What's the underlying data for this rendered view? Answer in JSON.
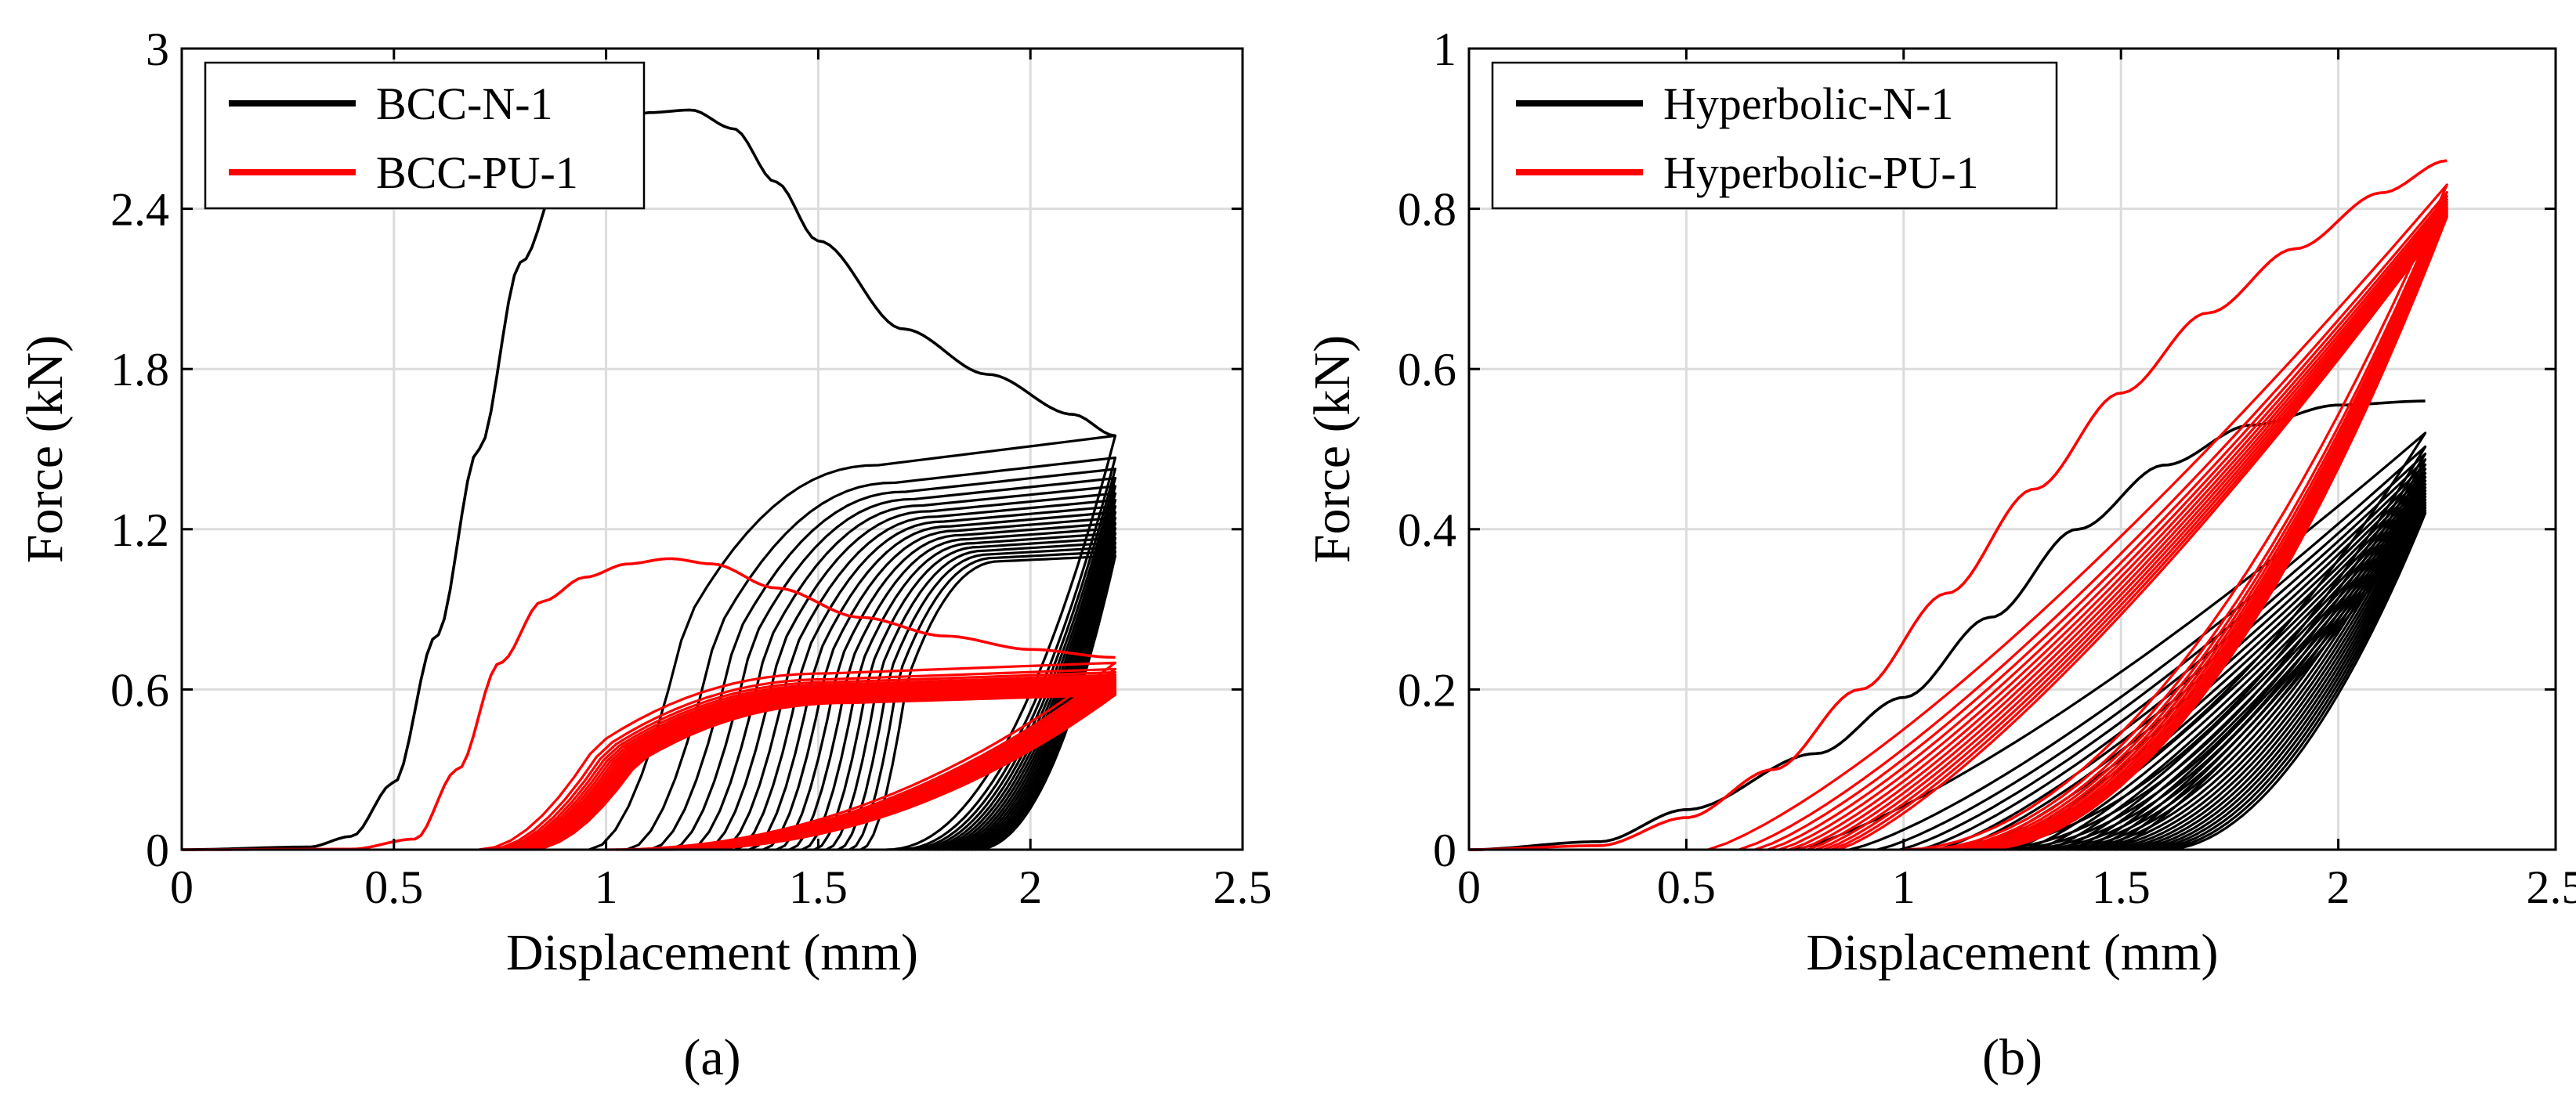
{
  "chart_data": [
    {
      "id": "a",
      "type": "line",
      "caption": "(a)",
      "xlabel": "Displacement (mm)",
      "ylabel": "Force (kN)",
      "xlim": [
        0,
        2.5
      ],
      "ylim": [
        0,
        3
      ],
      "xticks": [
        0,
        0.5,
        1,
        1.5,
        2,
        2.5
      ],
      "xtick_labels": [
        "0",
        "0.5",
        "1",
        "1.5",
        "2",
        "2.5"
      ],
      "yticks": [
        0,
        0.6,
        1.2,
        1.8,
        2.4,
        3
      ],
      "ytick_labels": [
        "0",
        "0.6",
        "1.2",
        "1.8",
        "2.4",
        "3"
      ],
      "grid": true,
      "legend_position": "top-left",
      "series": [
        {
          "name": "BCC-N-1",
          "color": "#000000",
          "first_load": {
            "x": [
              0,
              0.3,
              0.4,
              0.5,
              0.6,
              0.7,
              0.8,
              0.9,
              1.0,
              1.1,
              1.2,
              1.3,
              1.4,
              1.5,
              1.7,
              1.9,
              2.1,
              2.2
            ],
            "y": [
              0,
              0.01,
              0.05,
              0.25,
              0.8,
              1.5,
              2.2,
              2.55,
              2.7,
              2.76,
              2.77,
              2.7,
              2.5,
              2.28,
              1.95,
              1.78,
              1.63,
              1.55
            ]
          },
          "cycles": {
            "count": 18,
            "reload_start_first": 0.96,
            "reload_start_last": 1.6,
            "peak_first": 1.55,
            "peak_last": 1.1,
            "plateau_first": 1.44,
            "plateau_last": 1.08,
            "unload_first": 1.66,
            "unload_last": 1.87,
            "x_max": 2.2
          }
        },
        {
          "name": "BCC-PU-1",
          "color": "#ff0000",
          "first_load": {
            "x": [
              0,
              0.4,
              0.55,
              0.65,
              0.75,
              0.85,
              0.95,
              1.05,
              1.15,
              1.25,
              1.4,
              1.6,
              1.8,
              2.0,
              2.2
            ],
            "y": [
              0,
              0.002,
              0.04,
              0.3,
              0.7,
              0.93,
              1.02,
              1.07,
              1.09,
              1.07,
              0.98,
              0.87,
              0.8,
              0.75,
              0.72
            ]
          },
          "cycles": {
            "count": 16,
            "reload_start_first": 0.7,
            "reload_start_last": 0.82,
            "peak_first": 0.7,
            "peak_last": 0.58,
            "plateau_first": 0.66,
            "plateau_last": 0.55,
            "unload_first": 1.0,
            "unload_last": 1.15,
            "x_max": 2.2
          }
        }
      ]
    },
    {
      "id": "b",
      "type": "line",
      "caption": "(b)",
      "xlabel": "Displacement (mm)",
      "ylabel": "Force (kN)",
      "xlim": [
        0,
        2.5
      ],
      "ylim": [
        0,
        1
      ],
      "xticks": [
        0,
        0.5,
        1,
        1.5,
        2,
        2.5
      ],
      "xtick_labels": [
        "0",
        "0.5",
        "1",
        "1.5",
        "2",
        "2.5"
      ],
      "yticks": [
        0,
        0.2,
        0.4,
        0.6,
        0.8,
        1
      ],
      "ytick_labels": [
        "0",
        "0.2",
        "0.4",
        "0.6",
        "0.8",
        "1"
      ],
      "grid": true,
      "legend_position": "top-left",
      "series": [
        {
          "name": "Hyperbolic-N-1",
          "color": "#000000",
          "first_load": {
            "x": [
              0,
              0.3,
              0.5,
              0.8,
              1.0,
              1.2,
              1.4,
              1.6,
              1.8,
              2.0,
              2.2
            ],
            "y": [
              0,
              0.01,
              0.05,
              0.12,
              0.19,
              0.29,
              0.4,
              0.48,
              0.53,
              0.555,
              0.56
            ]
          },
          "cycles": {
            "count": 20,
            "reload_start_first": 0.75,
            "reload_start_last": 1.48,
            "peak_first": 0.52,
            "peak_last": 0.42,
            "unload_first": 1.05,
            "unload_last": 1.6,
            "x_max": 2.2
          }
        },
        {
          "name": "Hyperbolic-PU-1",
          "color": "#ff0000",
          "first_load": {
            "x": [
              0,
              0.3,
              0.5,
              0.7,
              0.9,
              1.1,
              1.3,
              1.5,
              1.7,
              1.9,
              2.1,
              2.25
            ],
            "y": [
              0,
              0.005,
              0.04,
              0.1,
              0.2,
              0.32,
              0.45,
              0.57,
              0.67,
              0.75,
              0.82,
              0.86
            ]
          },
          "cycles": {
            "count": 12,
            "reload_start_first": 0.55,
            "reload_start_last": 0.85,
            "peak_first": 0.83,
            "peak_last": 0.79,
            "unload_first": 1.0,
            "unload_last": 1.18,
            "x_max": 2.25
          }
        }
      ]
    }
  ]
}
